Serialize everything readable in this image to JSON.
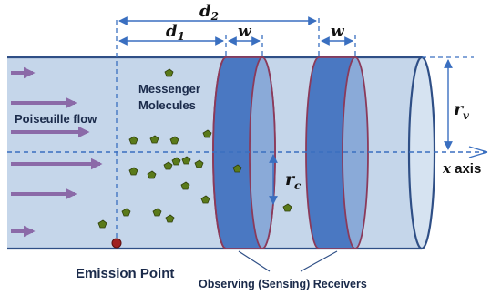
{
  "labels": {
    "d2": "d",
    "d2_sub": "2",
    "d1": "d",
    "d1_sub": "1",
    "w_left": "w",
    "w_right": "w",
    "rv": "r",
    "rv_sub": "v",
    "rc": "r",
    "rc_sub": "c",
    "x_axis": "x",
    "x_axis_suffix": " axis",
    "messenger_line1": "Messenger",
    "messenger_line2": "Molecules",
    "flow": "Poiseuille flow",
    "emission": "Emission Point",
    "receivers": "Observing (Sensing) Receivers"
  },
  "colors": {
    "tube_fill": "#c5d6ea",
    "tube_edge": "#2f4f86",
    "receiver_face": "#4a78c2",
    "receiver_edge": "#8b3a5a",
    "molecule": "#5a7a1a",
    "molecule_edge": "#2f3f0a",
    "flow_arrow": "#8b6aa8",
    "dim_line": "#3a6fc0",
    "emission_dot": "#a02020"
  }
}
